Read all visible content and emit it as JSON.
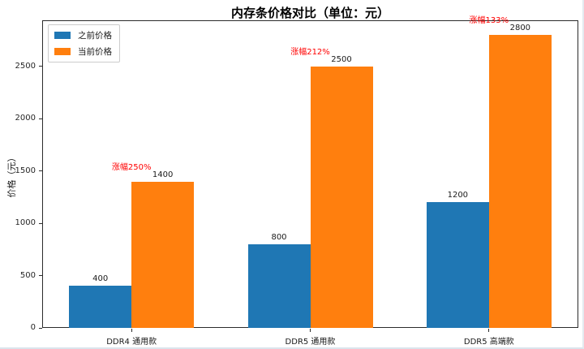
{
  "chart_data": {
    "type": "bar",
    "title": "内存条价格对比（单位：元）",
    "xlabel": "",
    "ylabel": "价格（元）",
    "categories": [
      "DDR4 通用款",
      "DDR5 通用款",
      "DDR5 高端款"
    ],
    "series": [
      {
        "name": "之前价格",
        "values": [
          400,
          800,
          1200
        ],
        "color": "#1f77b4"
      },
      {
        "name": "当前价格",
        "values": [
          1400,
          2500,
          2800
        ],
        "color": "#ff7f0e"
      }
    ],
    "bar_value_labels": [
      [
        "400",
        "800",
        "1200"
      ],
      [
        "1400",
        "2500",
        "2800"
      ]
    ],
    "annotations": [
      {
        "text": "涨幅250%",
        "group": 0
      },
      {
        "text": "涨幅212%",
        "group": 1
      },
      {
        "text": "涨幅133%",
        "group": 2
      }
    ],
    "annotation_color": "#ff0000",
    "yticks": [
      0,
      500,
      1000,
      1500,
      2000,
      2500
    ],
    "ylim": [
      0,
      2942
    ],
    "grid": false,
    "legend_position": "upper left"
  }
}
